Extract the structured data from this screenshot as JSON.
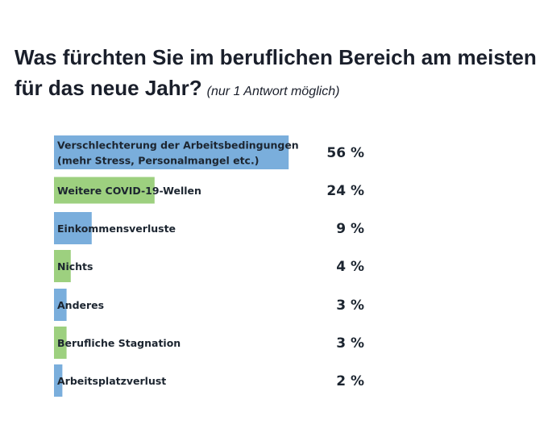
{
  "title_line1": "Was fürchten Sie im beruflichen Bereich am meisten",
  "title_line2": "für das neue Jahr?",
  "subtitle": "(nur 1 Antwort möglich)",
  "colors": {
    "blue": "#7aaedc",
    "green": "#9dd07f"
  },
  "chart_data": {
    "type": "bar",
    "orientation": "horizontal",
    "categories": [
      [
        "Verschlechterung der Arbeitsbedingungen",
        "(mehr Stress, Personalmangel etc.)"
      ],
      [
        "Weitere COVID-19-Wellen"
      ],
      [
        "Einkommensverluste"
      ],
      [
        "Nichts"
      ],
      [
        "Anderes"
      ],
      [
        "Berufliche Stagnation"
      ],
      [
        "Arbeitsplatzverlust"
      ]
    ],
    "values": [
      56,
      24,
      9,
      4,
      3,
      3,
      2
    ],
    "value_labels": [
      "56 %",
      "24 %",
      "9 %",
      "4 %",
      "3 %",
      "3 %",
      "2 %"
    ],
    "bar_colors": [
      "blue",
      "green",
      "blue",
      "green",
      "blue",
      "green",
      "blue"
    ],
    "unit": "%"
  }
}
